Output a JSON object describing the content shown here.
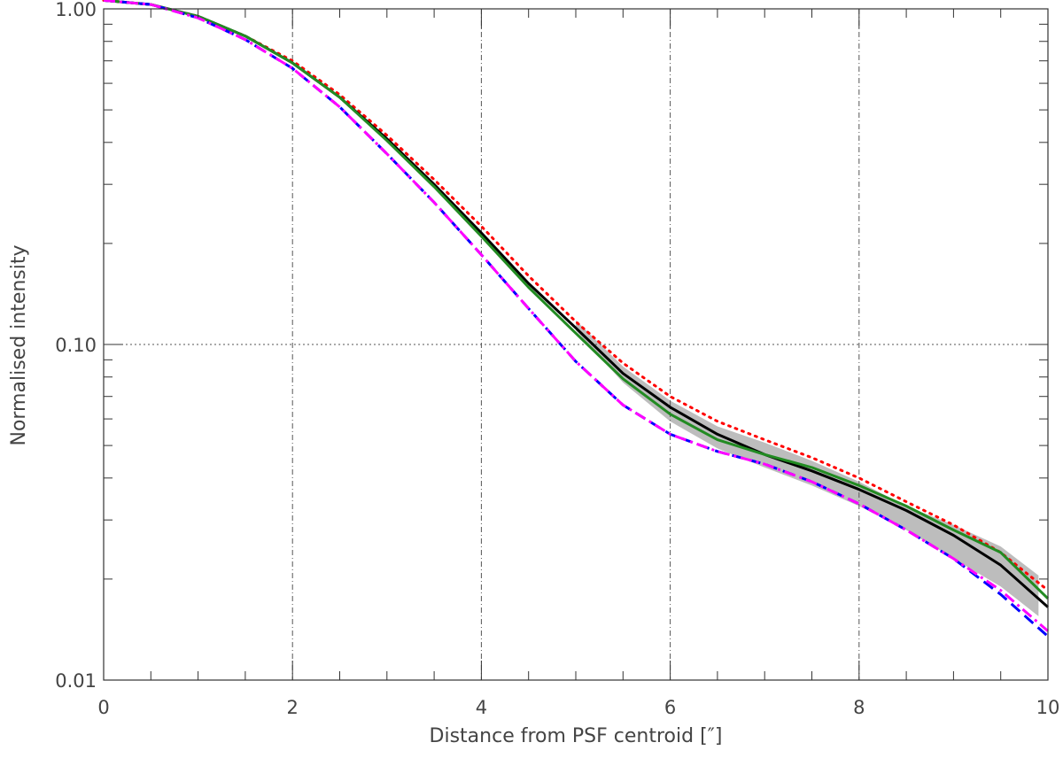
{
  "chart_data": {
    "type": "line",
    "title": "",
    "xlabel": "Distance from PSF centroid [″]",
    "ylabel": "Normalised intensity",
    "xlim": [
      0,
      10
    ],
    "ylim": [
      0.01,
      1.0
    ],
    "yscale": "log",
    "x_ticks": [
      0,
      2,
      4,
      6,
      8,
      10
    ],
    "x_tick_labels": [
      "0",
      "2",
      "4",
      "6",
      "8",
      "10"
    ],
    "y_ticks": [
      0.01,
      0.1,
      1.0
    ],
    "y_tick_labels": [
      "0.01",
      "0.10",
      "1.00"
    ],
    "grid": true,
    "legend": "none",
    "band": {
      "color": "#bdbdbd",
      "x": [
        5.0,
        5.5,
        6.0,
        6.5,
        7.0,
        7.5,
        8.0,
        8.5,
        9.0,
        9.5,
        9.9
      ],
      "lower": [
        0.11,
        0.077,
        0.059,
        0.049,
        0.043,
        0.038,
        0.033,
        0.028,
        0.023,
        0.019,
        0.0155
      ],
      "upper": [
        0.118,
        0.086,
        0.068,
        0.057,
        0.051,
        0.045,
        0.039,
        0.033,
        0.029,
        0.025,
        0.0205
      ]
    },
    "series": [
      {
        "color": "#ff0000",
        "style": "dotted",
        "x": [
          0,
          0.5,
          1.0,
          1.5,
          2.0,
          2.5,
          3.0,
          3.5,
          4.0,
          4.5,
          5.0,
          5.5,
          6.0,
          6.5,
          7.0,
          7.5,
          8.0,
          8.5,
          9.0,
          9.5,
          10.0
        ],
        "values": [
          1.06,
          1.03,
          0.95,
          0.83,
          0.7,
          0.555,
          0.42,
          0.31,
          0.225,
          0.16,
          0.117,
          0.088,
          0.07,
          0.059,
          0.052,
          0.046,
          0.04,
          0.034,
          0.029,
          0.024,
          0.0185
        ]
      },
      {
        "color": "#000000",
        "style": "solid",
        "x": [
          0,
          0.5,
          1.0,
          1.5,
          2.0,
          2.5,
          3.0,
          3.5,
          4.0,
          4.5,
          5.0,
          5.5,
          6.0,
          6.5,
          7.0,
          7.5,
          8.0,
          8.5,
          9.0,
          9.5,
          10.0
        ],
        "values": [
          1.06,
          1.03,
          0.95,
          0.83,
          0.69,
          0.545,
          0.41,
          0.3,
          0.215,
          0.152,
          0.112,
          0.082,
          0.065,
          0.054,
          0.047,
          0.042,
          0.037,
          0.032,
          0.027,
          0.022,
          0.0165
        ]
      },
      {
        "color": "#228b22",
        "style": "solid",
        "x": [
          0,
          0.5,
          1.0,
          1.5,
          2.0,
          2.5,
          3.0,
          3.5,
          4.0,
          4.5,
          5.0,
          5.5,
          6.0,
          6.5,
          7.0,
          7.5,
          8.0,
          8.5,
          9.0,
          9.5,
          10.0
        ],
        "values": [
          1.06,
          1.03,
          0.95,
          0.83,
          0.69,
          0.545,
          0.405,
          0.295,
          0.21,
          0.148,
          0.108,
          0.079,
          0.062,
          0.052,
          0.047,
          0.043,
          0.038,
          0.033,
          0.028,
          0.024,
          0.0175
        ]
      },
      {
        "color": "#0000ff",
        "style": "dashed",
        "x": [
          0,
          0.5,
          1.0,
          1.5,
          2.0,
          2.5,
          3.0,
          3.5,
          4.0,
          4.5,
          5.0,
          5.5,
          6.0,
          6.5,
          7.0,
          7.5,
          8.0,
          8.5,
          9.0,
          9.5,
          10.0
        ],
        "values": [
          1.06,
          1.03,
          0.94,
          0.81,
          0.665,
          0.51,
          0.37,
          0.265,
          0.185,
          0.128,
          0.089,
          0.066,
          0.054,
          0.048,
          0.044,
          0.039,
          0.0335,
          0.028,
          0.023,
          0.018,
          0.0135
        ]
      },
      {
        "color": "#ff00ff",
        "style": "dashdot",
        "x": [
          0,
          0.5,
          1.0,
          1.5,
          2.0,
          2.5,
          3.0,
          3.5,
          4.0,
          4.5,
          5.0,
          5.5,
          6.0,
          6.5,
          7.0,
          7.5,
          8.0,
          8.5,
          9.0,
          9.5,
          10.0
        ],
        "values": [
          1.06,
          1.03,
          0.94,
          0.81,
          0.665,
          0.51,
          0.37,
          0.265,
          0.185,
          0.128,
          0.089,
          0.066,
          0.054,
          0.048,
          0.044,
          0.039,
          0.0335,
          0.028,
          0.023,
          0.0185,
          0.014
        ]
      }
    ]
  }
}
